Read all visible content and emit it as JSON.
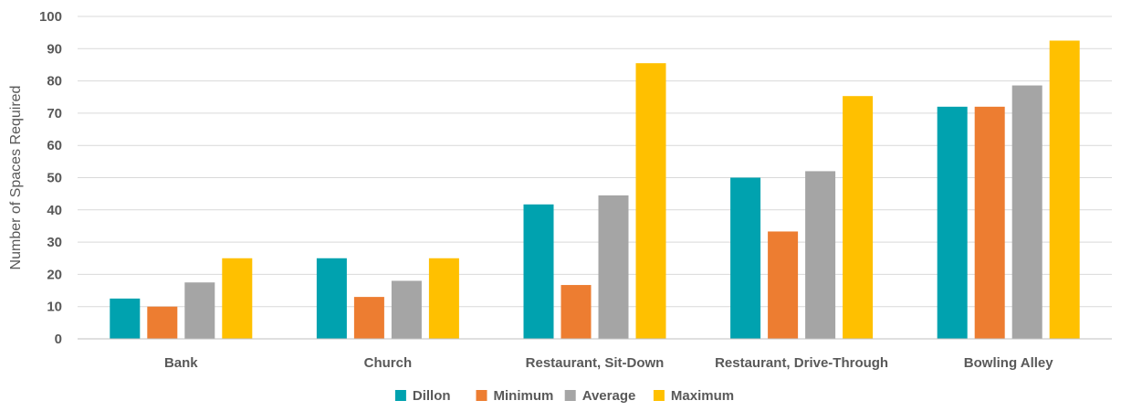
{
  "chart_data": {
    "type": "bar",
    "title": "",
    "xlabel": "",
    "ylabel": "Number of Spaces Required",
    "ylim": [
      0,
      100
    ],
    "yticks": [
      0,
      10,
      20,
      30,
      40,
      50,
      60,
      70,
      80,
      90,
      100
    ],
    "grid": true,
    "legend_position": "bottom",
    "categories": [
      "Bank",
      "Church",
      "Restaurant, Sit-Down",
      "Restaurant, Drive-Through",
      "Bowling Alley"
    ],
    "series": [
      {
        "name": "Dillon",
        "color": "#00A2AF",
        "values": [
          12.5,
          25,
          41.7,
          50,
          72
        ]
      },
      {
        "name": "Minimum",
        "color": "#ED7D31",
        "values": [
          10,
          13,
          16.7,
          33.3,
          72
        ]
      },
      {
        "name": "Average",
        "color": "#A5A5A5",
        "values": [
          17.5,
          18,
          44.5,
          52,
          78.6
        ]
      },
      {
        "name": "Maximum",
        "color": "#FFC000",
        "values": [
          25,
          25,
          85.5,
          75.3,
          92.5
        ]
      }
    ]
  }
}
